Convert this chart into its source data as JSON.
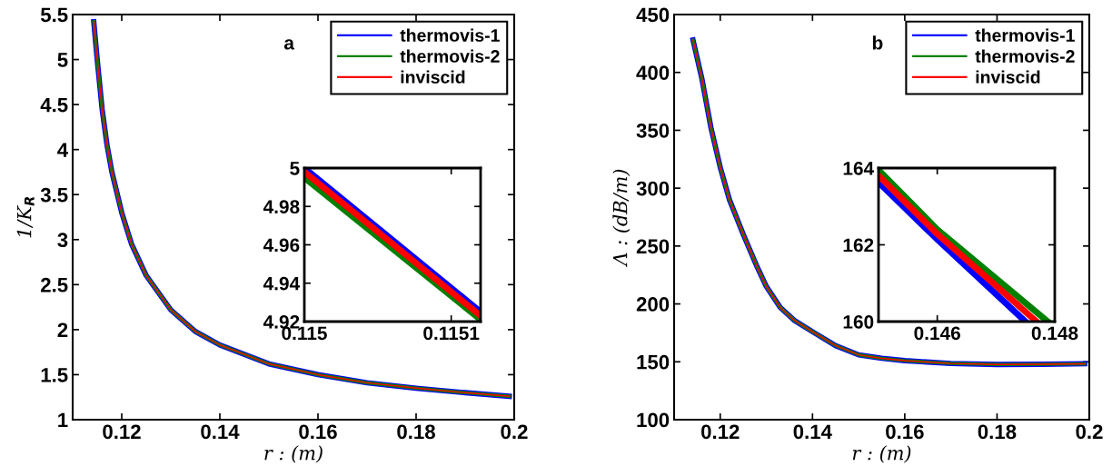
{
  "chart_data": [
    {
      "type": "line",
      "ylabel": "1/K$_{R}$",
      "xlabel": "r : (m)",
      "annotations": [
        "a"
      ],
      "legend": "top right",
      "grid": false,
      "xlim": [
        0.11,
        0.2
      ],
      "xticks": [
        0.12,
        0.14,
        0.16,
        0.18,
        0.2
      ],
      "ylim": [
        1,
        5.5
      ],
      "yticks": [
        1,
        1.5,
        2,
        2.5,
        3,
        3.5,
        4,
        4.5,
        5,
        5.5
      ],
      "x": [
        0.1143,
        0.115,
        0.116,
        0.117,
        0.118,
        0.12,
        0.122,
        0.125,
        0.13,
        0.135,
        0.14,
        0.15,
        0.16,
        0.17,
        0.18,
        0.19,
        0.199
      ],
      "series": [
        {
          "name": "thermovis-1",
          "color": "#0000ff",
          "values": [
            5.42,
            5.0,
            4.45,
            4.05,
            3.75,
            3.3,
            2.95,
            2.6,
            2.22,
            1.98,
            1.83,
            1.62,
            1.5,
            1.41,
            1.35,
            1.3,
            1.26
          ]
        },
        {
          "name": "thermovis-2",
          "color": "#008000",
          "values": [
            5.42,
            5.0,
            4.45,
            4.05,
            3.75,
            3.3,
            2.95,
            2.6,
            2.22,
            1.98,
            1.83,
            1.62,
            1.5,
            1.41,
            1.35,
            1.3,
            1.26
          ]
        },
        {
          "name": "inviscid",
          "color": "#ff0000",
          "values": [
            5.42,
            5.0,
            4.45,
            4.05,
            3.75,
            3.3,
            2.95,
            2.6,
            2.22,
            1.98,
            1.83,
            1.62,
            1.5,
            1.41,
            1.35,
            1.3,
            1.26
          ]
        }
      ]
    },
    {
      "type": "line",
      "grid": false,
      "xlim": [
        0.115,
        0.11512
      ],
      "xticks": [
        0.115,
        0.1151
      ],
      "ylim": [
        4.92,
        5
      ],
      "yticks": [
        4.92,
        4.94,
        4.96,
        4.98,
        5
      ],
      "x": [
        0.115,
        0.11512
      ],
      "series": [
        {
          "color": "#0000ff",
          "values": [
            5.0,
            4.925
          ]
        },
        {
          "color": "#008000",
          "values": [
            4.995,
            4.921
          ]
        },
        {
          "color": "#ff0000",
          "values": [
            4.998,
            4.923
          ]
        }
      ]
    },
    {
      "type": "line",
      "ylabel": "Λ : (dB/m)",
      "xlabel": "r : (m)",
      "annotations": [
        "b"
      ],
      "legend": "top right",
      "grid": false,
      "xlim": [
        0.11,
        0.2
      ],
      "xticks": [
        0.12,
        0.14,
        0.16,
        0.18,
        0.2
      ],
      "ylim": [
        100,
        450
      ],
      "yticks": [
        100,
        150,
        200,
        250,
        300,
        350,
        400,
        450
      ],
      "x": [
        0.1141,
        0.116,
        0.118,
        0.12,
        0.122,
        0.125,
        0.128,
        0.13,
        0.133,
        0.136,
        0.14,
        0.145,
        0.15,
        0.155,
        0.16,
        0.17,
        0.18,
        0.19,
        0.199
      ],
      "series": [
        {
          "name": "thermovis-1",
          "color": "#0000ff",
          "values": [
            428,
            395,
            352,
            318,
            290,
            260,
            232,
            215,
            197,
            186,
            176,
            164,
            156,
            153,
            151,
            148.6,
            147.7,
            147.9,
            148.3
          ]
        },
        {
          "name": "thermovis-2",
          "color": "#008000",
          "values": [
            428,
            395,
            352,
            318,
            290,
            260,
            232,
            215,
            197,
            186,
            176,
            164,
            156,
            153,
            151,
            148.6,
            147.7,
            147.9,
            148.3
          ]
        },
        {
          "name": "inviscid",
          "color": "#ff0000",
          "values": [
            428,
            395,
            352,
            318,
            290,
            260,
            232,
            215,
            197,
            186,
            176,
            164,
            156,
            153,
            151,
            148.6,
            147.7,
            147.9,
            148.3
          ]
        }
      ]
    },
    {
      "type": "line",
      "grid": false,
      "xlim": [
        0.145,
        0.148
      ],
      "xticks": [
        0.146,
        0.148
      ],
      "ylim": [
        160,
        164
      ],
      "yticks": [
        160,
        162,
        164
      ],
      "series": [
        {
          "color": "#0000ff",
          "x": [
            0.145,
            0.146,
            0.1475
          ],
          "values": [
            163.63,
            162.14,
            160.0
          ]
        },
        {
          "color": "#008000",
          "x": [
            0.145,
            0.146,
            0.14788
          ],
          "values": [
            163.95,
            162.4,
            160.0
          ]
        },
        {
          "color": "#ff0000",
          "x": [
            0.145,
            0.146,
            0.14769
          ],
          "values": [
            163.8,
            162.28,
            160.0
          ]
        }
      ]
    }
  ]
}
